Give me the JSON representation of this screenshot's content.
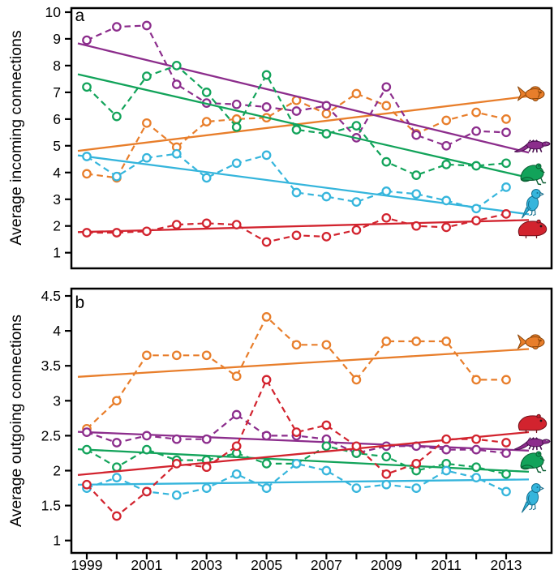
{
  "figure": {
    "background": "#ffffff",
    "panel_letters": [
      "a",
      "b"
    ],
    "species_colors": {
      "fish": "#E87E2B",
      "reptile": "#8C2D8C",
      "amphibian": "#12A35A",
      "bird": "#35B5DC",
      "mammal": "#D2232E"
    }
  },
  "chart_data": [
    {
      "panel": "a",
      "type": "line",
      "title": "",
      "xlabel": "",
      "ylabel": "Average incoming connections",
      "x": [
        1999,
        2000,
        2001,
        2002,
        2003,
        2004,
        2005,
        2006,
        2007,
        2008,
        2009,
        2010,
        2011,
        2012,
        2013
      ],
      "x_labeled_ticks": [
        1999,
        2001,
        2003,
        2005,
        2007,
        2009,
        2011,
        2013
      ],
      "yticks": [
        1,
        2,
        3,
        4,
        5,
        6,
        7,
        8,
        9,
        10
      ],
      "ylim": [
        0.45,
        10.15
      ],
      "grid": false,
      "marker": "open-circle",
      "line_style": "dashed-with-solid-linear-trend",
      "series": [
        {
          "name": "fish",
          "color": "#E87E2B",
          "values": [
            3.95,
            3.8,
            5.85,
            4.95,
            5.9,
            6.0,
            6.05,
            6.7,
            6.2,
            6.95,
            6.5,
            5.45,
            5.95,
            6.25,
            6.0
          ],
          "trend_1999_2013": [
            4.85,
            6.75
          ]
        },
        {
          "name": "reptile",
          "color": "#8C2D8C",
          "values": [
            8.95,
            9.45,
            9.5,
            7.3,
            6.6,
            6.55,
            6.45,
            6.3,
            6.5,
            5.3,
            7.2,
            5.4,
            5.0,
            5.55,
            5.5
          ],
          "trend_1999_2013": [
            8.75,
            4.95
          ]
        },
        {
          "name": "amphibian",
          "color": "#12A35A",
          "values": [
            7.2,
            6.1,
            7.6,
            8.0,
            7.0,
            5.7,
            7.65,
            5.6,
            5.45,
            5.75,
            4.4,
            3.9,
            4.3,
            4.25,
            4.35
          ],
          "trend_1999_2013": [
            7.6,
            4.0
          ]
        },
        {
          "name": "bird",
          "color": "#35B5DC",
          "values": [
            4.6,
            3.85,
            4.55,
            4.7,
            3.8,
            4.35,
            4.65,
            3.25,
            3.1,
            2.9,
            3.3,
            3.2,
            2.95,
            2.65,
            3.45
          ],
          "trend_1999_2013": [
            4.6,
            2.55
          ]
        },
        {
          "name": "mammal",
          "color": "#D2232E",
          "values": [
            1.75,
            1.75,
            1.8,
            2.05,
            2.1,
            2.05,
            1.4,
            1.65,
            1.6,
            1.85,
            2.3,
            2.0,
            1.95,
            2.2,
            2.45
          ],
          "trend_1999_2013": [
            1.78,
            2.2
          ]
        }
      ],
      "icons": [
        "fish",
        "reptile",
        "amphibian",
        "bird",
        "mammal"
      ]
    },
    {
      "panel": "b",
      "type": "line",
      "title": "",
      "xlabel": "",
      "ylabel": "Average outgoing connections",
      "x": [
        1999,
        2000,
        2001,
        2002,
        2003,
        2004,
        2005,
        2006,
        2007,
        2008,
        2009,
        2010,
        2011,
        2012,
        2013
      ],
      "x_labeled_ticks": [
        1999,
        2001,
        2003,
        2005,
        2007,
        2009,
        2011,
        2013
      ],
      "yticks": [
        1,
        1.5,
        2,
        2.5,
        3,
        3.5,
        4,
        4.5
      ],
      "ylim": [
        0.87,
        4.62
      ],
      "grid": false,
      "marker": "open-circle",
      "line_style": "dashed-with-solid-linear-trend",
      "series": [
        {
          "name": "fish",
          "color": "#E87E2B",
          "values": [
            2.6,
            3.0,
            3.65,
            3.65,
            3.65,
            3.35,
            4.2,
            3.8,
            3.8,
            3.3,
            3.85,
            3.85,
            3.85,
            3.3,
            3.3
          ],
          "trend_1999_2013": [
            3.35,
            3.72
          ]
        },
        {
          "name": "reptile",
          "color": "#8C2D8C",
          "values": [
            2.55,
            2.4,
            2.5,
            2.45,
            2.45,
            2.8,
            2.5,
            2.5,
            2.45,
            2.25,
            2.35,
            2.35,
            2.3,
            2.3,
            2.25
          ],
          "trend_1999_2013": [
            2.55,
            2.3
          ]
        },
        {
          "name": "amphibian",
          "color": "#12A35A",
          "values": [
            2.3,
            2.05,
            2.3,
            2.15,
            2.15,
            2.25,
            2.1,
            2.1,
            2.35,
            2.25,
            2.2,
            2.0,
            2.1,
            2.05,
            1.95
          ],
          "trend_1999_2013": [
            2.3,
            2.0
          ]
        },
        {
          "name": "bird",
          "color": "#35B5DC",
          "values": [
            1.75,
            1.9,
            1.7,
            1.65,
            1.75,
            1.95,
            1.75,
            2.1,
            2.0,
            1.75,
            1.8,
            1.75,
            2.0,
            1.9,
            1.7
          ],
          "trend_1999_2013": [
            1.8,
            1.87
          ]
        },
        {
          "name": "mammal",
          "color": "#D2232E",
          "values": [
            1.8,
            1.35,
            1.7,
            2.1,
            2.05,
            2.35,
            3.3,
            2.55,
            2.65,
            2.35,
            1.95,
            2.1,
            2.45,
            2.45,
            2.4
          ],
          "trend_1999_2013": [
            1.95,
            2.52
          ]
        }
      ],
      "icons": [
        "fish",
        "mammal",
        "reptile",
        "amphibian",
        "bird"
      ]
    }
  ]
}
